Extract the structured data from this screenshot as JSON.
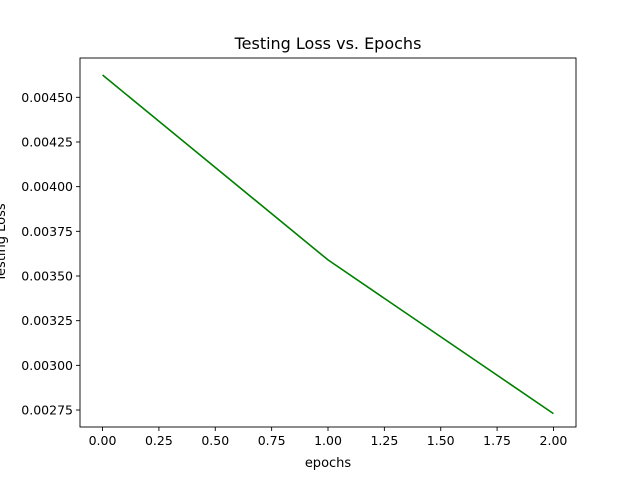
{
  "chart_data": {
    "type": "line",
    "title": "Testing Loss vs. Epochs",
    "xlabel": "epochs",
    "ylabel": "Testing Loss",
    "x": [
      0,
      1,
      2
    ],
    "series": [
      {
        "values": [
          0.004625,
          0.00359,
          0.00273
        ],
        "color": "#008000"
      }
    ],
    "xlim": [
      -0.1,
      2.1
    ],
    "ylim": [
      0.002655,
      0.00472
    ],
    "xticks": [
      0.0,
      0.25,
      0.5,
      0.75,
      1.0,
      1.25,
      1.5,
      1.75,
      2.0
    ],
    "xtick_labels": [
      "0.00",
      "0.25",
      "0.50",
      "0.75",
      "1.00",
      "1.25",
      "1.50",
      "1.75",
      "2.00"
    ],
    "yticks": [
      0.00275,
      0.003,
      0.00325,
      0.0035,
      0.00375,
      0.004,
      0.00425,
      0.0045
    ],
    "ytick_labels": [
      "0.00275",
      "0.00300",
      "0.00325",
      "0.00350",
      "0.00375",
      "0.00400",
      "0.00425",
      "0.00450"
    ],
    "grid": false,
    "legend": false
  }
}
